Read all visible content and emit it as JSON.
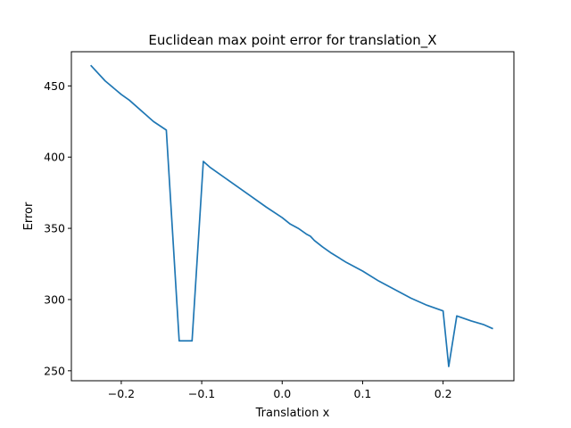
{
  "chart_data": {
    "type": "line",
    "title": "Euclidean max point error for translation_X",
    "xlabel": "Translation x",
    "ylabel": "Error",
    "xlim": [
      -0.262,
      0.288
    ],
    "ylim": [
      243,
      474
    ],
    "x_ticks": [
      -0.2,
      -0.1,
      0.0,
      0.1,
      0.2
    ],
    "x_tick_labels": [
      "−0.2",
      "−0.1",
      "0.0",
      "0.1",
      "0.2"
    ],
    "y_ticks": [
      250,
      300,
      350,
      400,
      450
    ],
    "y_tick_labels": [
      "250",
      "300",
      "350",
      "400",
      "450"
    ],
    "grid": false,
    "line_color": "#1f77b4",
    "series": [
      {
        "x": [
          -0.238,
          -0.22,
          -0.2,
          -0.19,
          -0.17,
          -0.16,
          -0.144,
          -0.128,
          -0.112,
          -0.098,
          -0.09,
          -0.08,
          -0.06,
          -0.04,
          -0.02,
          0.0,
          0.01,
          0.02,
          0.03,
          0.035,
          0.04,
          0.05,
          0.06,
          0.08,
          0.1,
          0.12,
          0.14,
          0.16,
          0.18,
          0.2,
          0.207,
          0.217,
          0.235,
          0.25,
          0.262
        ],
        "y": [
          464.5,
          453.5,
          444,
          440,
          430,
          425,
          419,
          271,
          271,
          397,
          393,
          389,
          381,
          373,
          365,
          357.5,
          353,
          350,
          346,
          344.5,
          341.5,
          337,
          333,
          326,
          320,
          313,
          307,
          301,
          296,
          292,
          253,
          288.5,
          285,
          282.5,
          279.5
        ]
      }
    ]
  }
}
